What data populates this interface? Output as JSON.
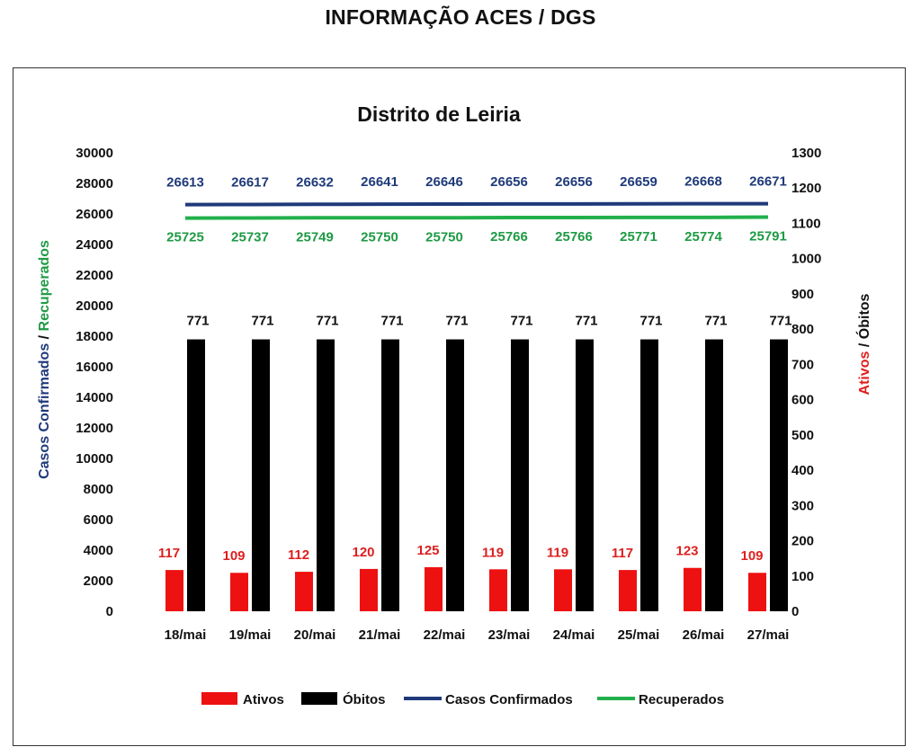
{
  "page": {
    "title": "INFORMAÇÃO ACES / DGS"
  },
  "colors": {
    "ativos": "#ee1111",
    "obitos": "#000000",
    "confirmados": "#1f3a7a",
    "recuperados": "#22b04b",
    "confirmados_label": "#1f3a7a",
    "recuperados_label": "#1e9a44",
    "ativos_label": "#dd1f1f"
  },
  "chart_data": {
    "type": "bar",
    "title": "Distrito de Leiria",
    "categories": [
      "18/mai",
      "19/mai",
      "20/mai",
      "21/mai",
      "22/mai",
      "23/mai",
      "24/mai",
      "25/mai",
      "26/mai",
      "27/mai"
    ],
    "left_axis": {
      "title_part1": "Casos Confirmados",
      "title_sep": " / ",
      "title_part2": "Recuperados",
      "ylim": [
        0,
        30000
      ],
      "ticks": [
        0,
        2000,
        4000,
        6000,
        8000,
        10000,
        12000,
        14000,
        16000,
        18000,
        20000,
        22000,
        24000,
        26000,
        28000,
        30000
      ]
    },
    "right_axis": {
      "title_part1": "Ativos",
      "title_sep": " / ",
      "title_part2": "Óbitos",
      "ylim": [
        0,
        1300
      ],
      "ticks": [
        0,
        100,
        200,
        300,
        400,
        500,
        600,
        700,
        800,
        900,
        1000,
        1100,
        1200,
        1300
      ]
    },
    "series": [
      {
        "name": "Ativos",
        "kind": "bar",
        "axis": "right",
        "values": [
          117,
          109,
          112,
          120,
          125,
          119,
          119,
          117,
          123,
          109
        ]
      },
      {
        "name": "Óbitos",
        "kind": "bar",
        "axis": "right",
        "values": [
          771,
          771,
          771,
          771,
          771,
          771,
          771,
          771,
          771,
          771
        ]
      },
      {
        "name": "Casos Confirmados",
        "kind": "line",
        "axis": "left",
        "values": [
          26613,
          26617,
          26632,
          26641,
          26646,
          26656,
          26656,
          26659,
          26668,
          26671
        ]
      },
      {
        "name": "Recuperados",
        "kind": "line",
        "axis": "left",
        "values": [
          25725,
          25737,
          25749,
          25750,
          25750,
          25766,
          25766,
          25771,
          25774,
          25791
        ]
      }
    ],
    "grid": false,
    "legend_position": "bottom"
  }
}
